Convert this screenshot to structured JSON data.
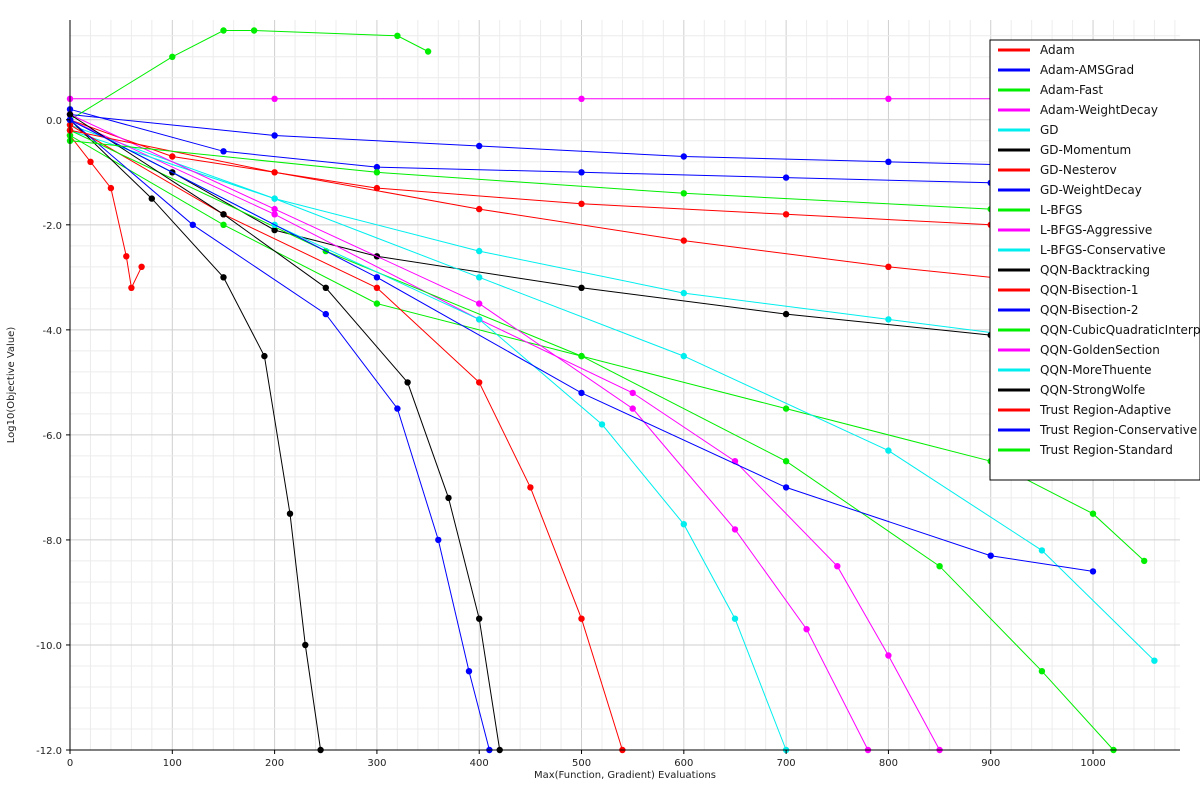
{
  "chart_data": {
    "type": "line",
    "title": "",
    "xlabel": "Max(Function, Gradient) Evaluations",
    "ylabel": "Log10(Objective Value)",
    "xlim": [
      0,
      1085
    ],
    "ylim": [
      -12.0,
      1.9
    ],
    "x_ticks": [
      0,
      100,
      200,
      300,
      400,
      500,
      600,
      700,
      800,
      900,
      1000
    ],
    "y_ticks": [
      -12.0,
      -10.0,
      -8.0,
      -6.0,
      -4.0,
      -2.0,
      0.0
    ],
    "y_tick_labels": [
      "-12.0",
      "-10.0",
      "-8.0",
      "-6.0",
      "-4.0",
      "-2.0",
      "0.0"
    ],
    "grid": true,
    "legend_position": "top-right",
    "series": [
      {
        "name": "Adam",
        "color": "#ff0000",
        "points": [
          [
            0,
            -0.3
          ],
          [
            20,
            -0.8
          ],
          [
            40,
            -1.3
          ],
          [
            55,
            -2.6
          ],
          [
            60,
            -3.2
          ],
          [
            70,
            -2.8
          ]
        ]
      },
      {
        "name": "Adam-AMSGrad",
        "color": "#0000ff",
        "points": [
          [
            0,
            0.2
          ],
          [
            150,
            -0.6
          ],
          [
            300,
            -0.9
          ],
          [
            500,
            -1.0
          ],
          [
            700,
            -1.1
          ],
          [
            900,
            -1.2
          ],
          [
            1050,
            -1.3
          ]
        ]
      },
      {
        "name": "Adam-Fast",
        "color": "#00ee00",
        "points": [
          [
            0,
            0.0
          ],
          [
            100,
            1.2
          ],
          [
            150,
            1.7
          ],
          [
            180,
            1.7
          ],
          [
            320,
            1.6
          ],
          [
            350,
            1.3
          ]
        ]
      },
      {
        "name": "Adam-WeightDecay",
        "color": "#ff00ff",
        "points": [
          [
            0,
            0.4
          ],
          [
            200,
            0.4
          ],
          [
            500,
            0.4
          ],
          [
            800,
            0.4
          ],
          [
            1100,
            0.4
          ]
        ]
      },
      {
        "name": "GD",
        "color": "#00eeee",
        "points": [
          [
            0,
            -0.1
          ],
          [
            200,
            -1.5
          ],
          [
            400,
            -2.5
          ],
          [
            600,
            -3.3
          ],
          [
            800,
            -3.8
          ],
          [
            1000,
            -4.3
          ],
          [
            1100,
            -4.6
          ]
        ]
      },
      {
        "name": "GD-Momentum",
        "color": "#000000",
        "points": [
          [
            0,
            0.0
          ],
          [
            100,
            -1.0
          ],
          [
            200,
            -2.1
          ],
          [
            300,
            -2.6
          ],
          [
            500,
            -3.2
          ],
          [
            700,
            -3.7
          ],
          [
            900,
            -4.1
          ],
          [
            1050,
            -4.4
          ]
        ]
      },
      {
        "name": "GD-Nesterov",
        "color": "#ff0000",
        "points": [
          [
            0,
            0.0
          ],
          [
            100,
            -0.7
          ],
          [
            300,
            -1.3
          ],
          [
            500,
            -1.6
          ],
          [
            700,
            -1.8
          ],
          [
            900,
            -2.0
          ],
          [
            1100,
            -2.2
          ]
        ]
      },
      {
        "name": "GD-WeightDecay",
        "color": "#0000ff",
        "points": [
          [
            0,
            0.1
          ],
          [
            200,
            -0.3
          ],
          [
            400,
            -0.5
          ],
          [
            600,
            -0.7
          ],
          [
            800,
            -0.8
          ],
          [
            1000,
            -0.9
          ]
        ]
      },
      {
        "name": "L-BFGS",
        "color": "#00ee00",
        "points": [
          [
            0,
            -0.3
          ],
          [
            150,
            -2.0
          ],
          [
            300,
            -3.5
          ],
          [
            500,
            -4.5
          ],
          [
            700,
            -5.5
          ],
          [
            900,
            -6.5
          ],
          [
            1000,
            -7.5
          ],
          [
            1050,
            -8.4
          ]
        ]
      },
      {
        "name": "L-BFGS-Aggressive",
        "color": "#ff00ff",
        "points": [
          [
            0,
            0.0
          ],
          [
            200,
            -1.8
          ],
          [
            400,
            -3.8
          ],
          [
            550,
            -5.2
          ],
          [
            650,
            -6.5
          ],
          [
            750,
            -8.5
          ],
          [
            800,
            -10.2
          ],
          [
            850,
            -12.0
          ]
        ]
      },
      {
        "name": "L-BFGS-Conservative",
        "color": "#00eeee",
        "points": [
          [
            0,
            -0.2
          ],
          [
            200,
            -1.5
          ],
          [
            400,
            -3.0
          ],
          [
            600,
            -4.5
          ],
          [
            800,
            -6.3
          ],
          [
            950,
            -8.2
          ],
          [
            1060,
            -10.3
          ]
        ]
      },
      {
        "name": "QQN-Backtracking",
        "color": "#000000",
        "points": [
          [
            0,
            0.0
          ],
          [
            80,
            -1.5
          ],
          [
            150,
            -3.0
          ],
          [
            190,
            -4.5
          ],
          [
            215,
            -7.5
          ],
          [
            230,
            -10.0
          ],
          [
            245,
            -12.0
          ]
        ]
      },
      {
        "name": "QQN-Bisection-1",
        "color": "#ff0000",
        "points": [
          [
            0,
            -0.1
          ],
          [
            150,
            -1.8
          ],
          [
            300,
            -3.2
          ],
          [
            400,
            -5.0
          ],
          [
            450,
            -7.0
          ],
          [
            500,
            -9.5
          ],
          [
            540,
            -12.0
          ]
        ]
      },
      {
        "name": "QQN-Bisection-2",
        "color": "#0000ff",
        "points": [
          [
            0,
            0.0
          ],
          [
            120,
            -2.0
          ],
          [
            250,
            -3.7
          ],
          [
            320,
            -5.5
          ],
          [
            360,
            -8.0
          ],
          [
            390,
            -10.5
          ],
          [
            410,
            -12.0
          ]
        ]
      },
      {
        "name": "QQN-CubicQuadraticInterpolation",
        "color": "#00ee00",
        "points": [
          [
            0,
            -0.2
          ],
          [
            250,
            -2.5
          ],
          [
            500,
            -4.5
          ],
          [
            700,
            -6.5
          ],
          [
            850,
            -8.5
          ],
          [
            950,
            -10.5
          ],
          [
            1020,
            -12.0
          ]
        ]
      },
      {
        "name": "QQN-GoldenSection",
        "color": "#ff00ff",
        "points": [
          [
            0,
            0.1
          ],
          [
            200,
            -1.7
          ],
          [
            400,
            -3.5
          ],
          [
            550,
            -5.5
          ],
          [
            650,
            -7.8
          ],
          [
            720,
            -9.7
          ],
          [
            780,
            -12.0
          ]
        ]
      },
      {
        "name": "QQN-MoreThuente",
        "color": "#00eeee",
        "points": [
          [
            0,
            0.0
          ],
          [
            200,
            -2.0
          ],
          [
            400,
            -3.8
          ],
          [
            520,
            -5.8
          ],
          [
            600,
            -7.7
          ],
          [
            650,
            -9.5
          ],
          [
            700,
            -12.0
          ]
        ]
      },
      {
        "name": "QQN-StrongWolfe",
        "color": "#000000",
        "points": [
          [
            0,
            0.1
          ],
          [
            150,
            -1.8
          ],
          [
            250,
            -3.2
          ],
          [
            330,
            -5.0
          ],
          [
            370,
            -7.2
          ],
          [
            400,
            -9.5
          ],
          [
            420,
            -12.0
          ]
        ]
      },
      {
        "name": "Trust Region-Adaptive",
        "color": "#ff0000",
        "points": [
          [
            0,
            -0.2
          ],
          [
            200,
            -1.0
          ],
          [
            400,
            -1.7
          ],
          [
            600,
            -2.3
          ],
          [
            800,
            -2.8
          ],
          [
            1000,
            -3.2
          ],
          [
            1100,
            -3.5
          ]
        ]
      },
      {
        "name": "Trust Region-Conservative",
        "color": "#0000ff",
        "points": [
          [
            0,
            0.0
          ],
          [
            300,
            -3.0
          ],
          [
            500,
            -5.2
          ],
          [
            700,
            -7.0
          ],
          [
            900,
            -8.3
          ],
          [
            1000,
            -8.6
          ]
        ]
      },
      {
        "name": "Trust Region-Standard",
        "color": "#00ee00",
        "points": [
          [
            0,
            -0.4
          ],
          [
            300,
            -1.0
          ],
          [
            600,
            -1.4
          ],
          [
            900,
            -1.7
          ],
          [
            1100,
            -2.0
          ]
        ]
      }
    ]
  }
}
